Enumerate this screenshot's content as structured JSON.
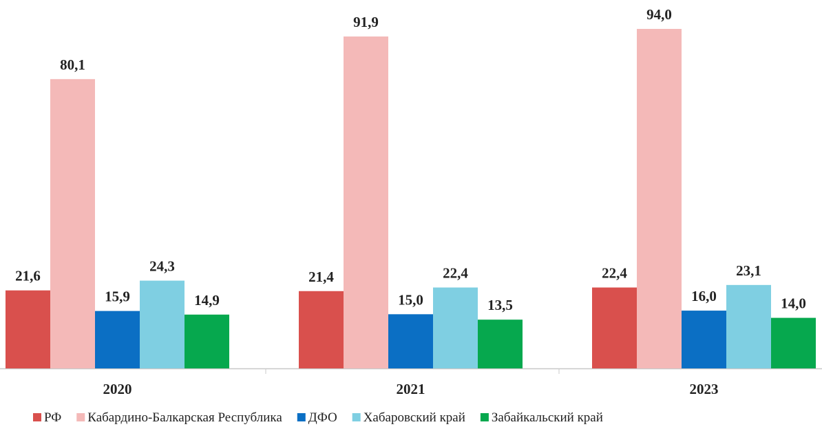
{
  "chart_data": {
    "type": "bar",
    "categories": [
      "2020",
      "2021",
      "2023"
    ],
    "series": [
      {
        "name": "РФ",
        "color": "#d9504d",
        "values": [
          21.6,
          21.4,
          22.4
        ],
        "value_labels": [
          "21,6",
          "21,4",
          "22,4"
        ]
      },
      {
        "name": "Кабардино-Балкарская Республика",
        "color": "#f4b9b8",
        "values": [
          80.1,
          91.9,
          94.0
        ],
        "value_labels": [
          "80,1",
          "91,9",
          "94,0"
        ]
      },
      {
        "name": "ДФО",
        "color": "#0b6fc4",
        "values": [
          15.9,
          15.0,
          16.0
        ],
        "value_labels": [
          "15,9",
          "15,0",
          "16,0"
        ]
      },
      {
        "name": "Хабаровский край",
        "color": "#7fcfe2",
        "values": [
          24.3,
          22.4,
          23.1
        ],
        "value_labels": [
          "24,3",
          "22,4",
          "23,1"
        ]
      },
      {
        "name": "Забайкальский край",
        "color": "#06a84e",
        "values": [
          14.9,
          13.5,
          14.0
        ],
        "value_labels": [
          "14,9",
          "13,5",
          "14,0"
        ]
      }
    ],
    "legend": "bottom"
  }
}
